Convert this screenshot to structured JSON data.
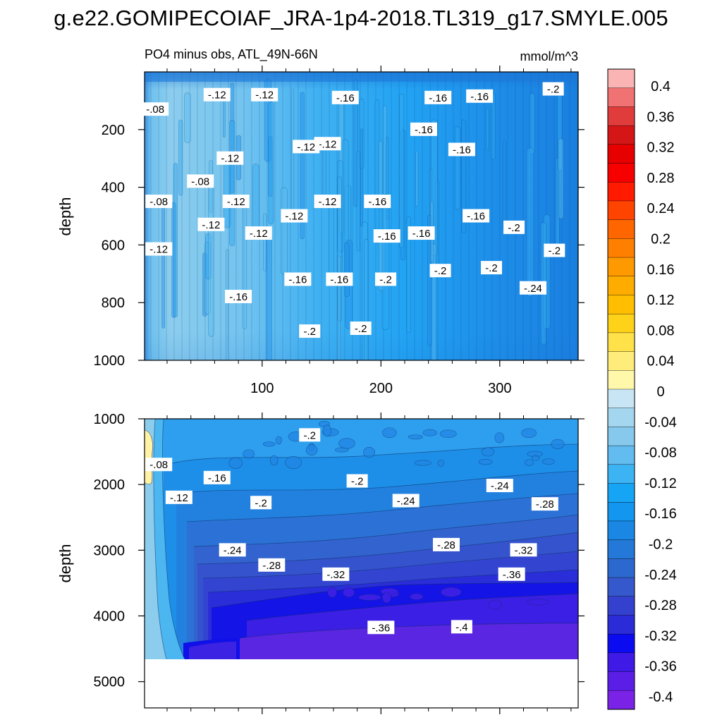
{
  "figure_title": "g.e22.GOMIPECOIAF_JRA-1p4-2018.TL319_g17.SMYLE.005",
  "subtitle_left": "PO4 minus obs, ATL_49N-66N",
  "units": "mmol/m^3",
  "ylabel": "depth",
  "chart_data": [
    {
      "type": "heatmap",
      "panel": "upper",
      "ylabel": "depth",
      "xlim": [
        1,
        366
      ],
      "ylim": [
        1000,
        0
      ],
      "x_ticks": [
        "100",
        "200",
        "300"
      ],
      "y_ticks": [
        "200",
        "400",
        "600",
        "800",
        "1000"
      ],
      "contour_labels": [
        {
          "x": 10,
          "y": 130,
          "text": "-.08"
        },
        {
          "x": 62,
          "y": 80,
          "text": "-.12"
        },
        {
          "x": 102,
          "y": 80,
          "text": "-.12"
        },
        {
          "x": 170,
          "y": 90,
          "text": "-.16"
        },
        {
          "x": 248,
          "y": 90,
          "text": "-.16"
        },
        {
          "x": 283,
          "y": 85,
          "text": "-.16"
        },
        {
          "x": 345,
          "y": 60,
          "text": "-.2"
        },
        {
          "x": 236,
          "y": 200,
          "text": "-.16"
        },
        {
          "x": 155,
          "y": 250,
          "text": "-.12"
        },
        {
          "x": 137,
          "y": 260,
          "text": "-.12"
        },
        {
          "x": 268,
          "y": 270,
          "text": "-.16"
        },
        {
          "x": 73,
          "y": 300,
          "text": "-.12"
        },
        {
          "x": 48,
          "y": 380,
          "text": "-.08"
        },
        {
          "x": 13,
          "y": 450,
          "text": "-.08"
        },
        {
          "x": 78,
          "y": 450,
          "text": "-.12"
        },
        {
          "x": 127,
          "y": 500,
          "text": "-.12"
        },
        {
          "x": 155,
          "y": 450,
          "text": "-.12"
        },
        {
          "x": 197,
          "y": 450,
          "text": "-.16"
        },
        {
          "x": 280,
          "y": 500,
          "text": "-.16"
        },
        {
          "x": 57,
          "y": 530,
          "text": "-.12"
        },
        {
          "x": 97,
          "y": 560,
          "text": "-.12"
        },
        {
          "x": 205,
          "y": 570,
          "text": "-.16"
        },
        {
          "x": 234,
          "y": 560,
          "text": "-.16"
        },
        {
          "x": 312,
          "y": 540,
          "text": "-.2"
        },
        {
          "x": 13,
          "y": 615,
          "text": "-.12"
        },
        {
          "x": 346,
          "y": 620,
          "text": "-.2"
        },
        {
          "x": 130,
          "y": 720,
          "text": "-.16"
        },
        {
          "x": 165,
          "y": 720,
          "text": "-.16"
        },
        {
          "x": 204,
          "y": 720,
          "text": "-.2"
        },
        {
          "x": 250,
          "y": 690,
          "text": "-.2"
        },
        {
          "x": 293,
          "y": 680,
          "text": "-.2"
        },
        {
          "x": 328,
          "y": 750,
          "text": "-.24"
        },
        {
          "x": 80,
          "y": 780,
          "text": "-.16"
        },
        {
          "x": 140,
          "y": 900,
          "text": "-.2"
        },
        {
          "x": 183,
          "y": 890,
          "text": "-.2"
        }
      ]
    },
    {
      "type": "heatmap",
      "panel": "lower",
      "ylabel": "depth",
      "xlim": [
        1,
        366
      ],
      "ylim": [
        5400,
        1000
      ],
      "y_ticks": [
        "1000",
        "2000",
        "3000",
        "4000",
        "5000"
      ],
      "contour_labels": [
        {
          "x": 13,
          "y": 1700,
          "text": "-.08"
        },
        {
          "x": 30,
          "y": 2200,
          "text": "-.12"
        },
        {
          "x": 62,
          "y": 1900,
          "text": "-.16"
        },
        {
          "x": 140,
          "y": 1250,
          "text": "-.2"
        },
        {
          "x": 180,
          "y": 1950,
          "text": "-.2"
        },
        {
          "x": 99,
          "y": 2280,
          "text": "-.2"
        },
        {
          "x": 221,
          "y": 2250,
          "text": "-.24"
        },
        {
          "x": 300,
          "y": 2020,
          "text": "-.24"
        },
        {
          "x": 338,
          "y": 2300,
          "text": "-.28"
        },
        {
          "x": 75,
          "y": 3000,
          "text": "-.24"
        },
        {
          "x": 255,
          "y": 2920,
          "text": "-.28"
        },
        {
          "x": 108,
          "y": 3230,
          "text": "-.28"
        },
        {
          "x": 320,
          "y": 3000,
          "text": "-.32"
        },
        {
          "x": 162,
          "y": 3370,
          "text": "-.32"
        },
        {
          "x": 310,
          "y": 3370,
          "text": "-.36"
        },
        {
          "x": 200,
          "y": 4180,
          "text": "-.36"
        },
        {
          "x": 268,
          "y": 4170,
          "text": "-.4"
        }
      ]
    }
  ],
  "colorbar": {
    "tick_labels": [
      "0.4",
      "0.36",
      "0.32",
      "0.28",
      "0.24",
      "0.2",
      "0.16",
      "0.12",
      "0.08",
      "0.04",
      "0",
      "-0.04",
      "-0.08",
      "-0.12",
      "-0.16",
      "-0.2",
      "-0.24",
      "-0.28",
      "-0.32",
      "-0.36",
      "-0.4"
    ],
    "colors": [
      "#fbb4b4",
      "#f07272",
      "#e03c3c",
      "#d41616",
      "#e60000",
      "#f60000",
      "#ff1a00",
      "#ff4400",
      "#ff6600",
      "#ff7f00",
      "#ff9900",
      "#ffac00",
      "#ffbf00",
      "#ffd21a",
      "#ffe14a",
      "#ffec7a",
      "#fff7aa",
      "#c7e5f5",
      "#a4d7ef",
      "#86c9ec",
      "#63bcef",
      "#3cb4f4",
      "#16a5f5",
      "#1296ef",
      "#1a87e4",
      "#2478d8",
      "#2c69cf",
      "#3559cc",
      "#3441cf",
      "#2b2bd8",
      "#0b0bf2",
      "#3f19e6",
      "#5a1ee6",
      "#7a22e6"
    ]
  }
}
